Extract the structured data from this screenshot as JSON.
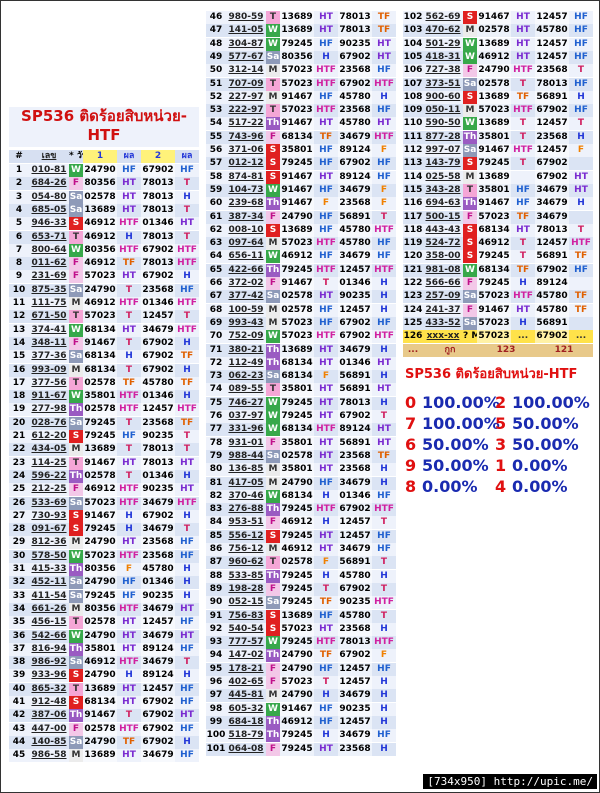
{
  "title": "SP536 ติดร้อยสิบหน่วย-HTF",
  "header": [
    "#",
    "เลข",
    "* วัน",
    "1",
    "ผล",
    "2",
    "ผล"
  ],
  "tables": [
    {
      "rows": [
        [
          1,
          "010-81",
          "W",
          "24790",
          "HF",
          "67902",
          "HF"
        ],
        [
          2,
          "684-26",
          "F",
          "80356",
          "HT",
          "78013",
          "T"
        ],
        [
          3,
          "054-80",
          "Sa",
          "02578",
          "HT",
          "78013",
          "H"
        ],
        [
          4,
          "685-05",
          "Sa",
          "13689",
          "HT",
          "78013",
          "T"
        ],
        [
          5,
          "946-33",
          "S",
          "46912",
          "HTF",
          "01346",
          "HT"
        ],
        [
          6,
          "653-71",
          "T",
          "46912",
          "H",
          "78013",
          "T"
        ],
        [
          7,
          "800-64",
          "W",
          "80356",
          "HTF",
          "67902",
          "HTF"
        ],
        [
          8,
          "011-62",
          "F",
          "46912",
          "TF",
          "78013",
          "HTF"
        ],
        [
          9,
          "231-69",
          "F",
          "57023",
          "HT",
          "67902",
          "H"
        ],
        [
          10,
          "875-35",
          "Sa",
          "24790",
          "T",
          "23568",
          "HF"
        ],
        [
          11,
          "111-75",
          "M",
          "46912",
          "HTF",
          "01346",
          "HTF"
        ],
        [
          12,
          "671-50",
          "T",
          "57023",
          "T",
          "12457",
          "T"
        ],
        [
          13,
          "374-41",
          "W",
          "68134",
          "HT",
          "34679",
          "HTF"
        ],
        [
          14,
          "348-11",
          "F",
          "91467",
          "T",
          "67902",
          "H"
        ],
        [
          15,
          "377-36",
          "Sa",
          "68134",
          "H",
          "67902",
          "TF"
        ],
        [
          16,
          "993-09",
          "M",
          "68134",
          "T",
          "67902",
          "H"
        ],
        [
          17,
          "377-56",
          "T",
          "02578",
          "TF",
          "45780",
          "TF"
        ],
        [
          18,
          "911-67",
          "W",
          "35801",
          "HTF",
          "01346",
          "H"
        ],
        [
          19,
          "277-98",
          "Th",
          "02578",
          "HTF",
          "12457",
          "HTF"
        ],
        [
          20,
          "028-76",
          "Sa",
          "79245",
          "T",
          "23568",
          "TF"
        ],
        [
          21,
          "612-20",
          "S",
          "79245",
          "HF",
          "90235",
          "T"
        ],
        [
          22,
          "434-05",
          "M",
          "13689",
          "T",
          "78013",
          "T"
        ],
        [
          23,
          "114-25",
          "T",
          "91467",
          "HT",
          "78013",
          "HT"
        ],
        [
          24,
          "596-22",
          "Th",
          "02578",
          "T",
          "01346",
          "H"
        ],
        [
          25,
          "212-25",
          "F",
          "46912",
          "HTF",
          "90235",
          "HT"
        ],
        [
          26,
          "533-69",
          "Sa",
          "57023",
          "HTF",
          "34679",
          "HTF"
        ],
        [
          27,
          "730-93",
          "S",
          "91467",
          "H",
          "67902",
          "H"
        ],
        [
          28,
          "091-67",
          "S",
          "79245",
          "H",
          "34679",
          "T"
        ],
        [
          29,
          "812-36",
          "M",
          "24790",
          "HT",
          "23568",
          "HF"
        ],
        [
          30,
          "578-50",
          "W",
          "57023",
          "HTF",
          "23568",
          "HF"
        ],
        [
          31,
          "415-33",
          "Th",
          "80356",
          "F",
          "45780",
          "H"
        ],
        [
          32,
          "452-11",
          "Sa",
          "24790",
          "HF",
          "01346",
          "H"
        ],
        [
          33,
          "411-54",
          "Sa",
          "79245",
          "HF",
          "90235",
          "H"
        ],
        [
          34,
          "661-26",
          "M",
          "80356",
          "HTF",
          "34679",
          "HT"
        ],
        [
          35,
          "456-15",
          "T",
          "02578",
          "HT",
          "12457",
          "HF"
        ],
        [
          36,
          "542-66",
          "W",
          "24790",
          "HT",
          "34679",
          "HT"
        ],
        [
          37,
          "816-94",
          "Th",
          "35801",
          "HT",
          "89124",
          "HF"
        ],
        [
          38,
          "986-92",
          "Sa",
          "46912",
          "HTF",
          "34679",
          "T"
        ],
        [
          39,
          "933-96",
          "S",
          "24790",
          "H",
          "89124",
          "H"
        ],
        [
          40,
          "865-32",
          "T",
          "13689",
          "HT",
          "12457",
          "HF"
        ],
        [
          41,
          "912-48",
          "S",
          "68134",
          "HT",
          "67902",
          "HF"
        ],
        [
          42,
          "387-06",
          "Th",
          "91467",
          "T",
          "67902",
          "HT"
        ],
        [
          43,
          "447-00",
          "F",
          "02578",
          "HTF",
          "67902",
          "HF"
        ],
        [
          44,
          "140-85",
          "Sa",
          "24790",
          "TF",
          "67902",
          "H"
        ],
        [
          45,
          "986-58",
          "M",
          "13689",
          "HT",
          "34679",
          "HF"
        ]
      ]
    },
    {
      "rows": [
        [
          46,
          "980-59",
          "T",
          "13689",
          "HT",
          "78013",
          "TF"
        ],
        [
          47,
          "141-05",
          "W",
          "13689",
          "HT",
          "78013",
          "TF"
        ],
        [
          48,
          "304-87",
          "W",
          "79245",
          "HF",
          "90235",
          "HT"
        ],
        [
          49,
          "577-67",
          "Sa",
          "80356",
          "H",
          "67902",
          "HT"
        ],
        [
          50,
          "312-14",
          "M",
          "57023",
          "HTF",
          "23568",
          "HF"
        ],
        [
          51,
          "707-09",
          "T",
          "57023",
          "HTF",
          "67902",
          "HTF"
        ],
        [
          52,
          "227-97",
          "M",
          "91467",
          "HF",
          "45780",
          "H"
        ],
        [
          53,
          "222-97",
          "T",
          "57023",
          "HTF",
          "23568",
          "HF"
        ],
        [
          54,
          "517-22",
          "Th",
          "91467",
          "HT",
          "45780",
          "HT"
        ],
        [
          55,
          "743-96",
          "F",
          "68134",
          "TF",
          "34679",
          "HTF"
        ],
        [
          56,
          "371-06",
          "S",
          "35801",
          "HF",
          "89124",
          "F"
        ],
        [
          57,
          "012-12",
          "S",
          "79245",
          "HF",
          "67902",
          "HF"
        ],
        [
          58,
          "874-81",
          "S",
          "91467",
          "HT",
          "89124",
          "HF"
        ],
        [
          59,
          "104-73",
          "W",
          "91467",
          "HF",
          "34679",
          "F"
        ],
        [
          60,
          "239-68",
          "Th",
          "91467",
          "F",
          "23568",
          "F"
        ],
        [
          61,
          "387-34",
          "F",
          "24790",
          "HF",
          "56891",
          "T"
        ],
        [
          62,
          "008-10",
          "S",
          "13689",
          "HF",
          "45780",
          "HTF"
        ],
        [
          63,
          "097-64",
          "M",
          "57023",
          "HTF",
          "45780",
          "HF"
        ],
        [
          64,
          "656-11",
          "W",
          "46912",
          "HF",
          "34679",
          "HF"
        ],
        [
          65,
          "422-66",
          "Th",
          "79245",
          "HTF",
          "12457",
          "HTF"
        ],
        [
          66,
          "372-02",
          "F",
          "91467",
          "T",
          "01346",
          "H"
        ],
        [
          67,
          "377-42",
          "Sa",
          "02578",
          "HT",
          "90235",
          "H"
        ],
        [
          68,
          "100-59",
          "M",
          "02578",
          "HF",
          "12457",
          "H"
        ],
        [
          69,
          "993-43",
          "M",
          "57023",
          "HF",
          "67902",
          "HF"
        ],
        [
          70,
          "752-09",
          "W",
          "57023",
          "HTF",
          "67902",
          "HTF"
        ],
        [
          71,
          "380-21",
          "Th",
          "13689",
          "HT",
          "34679",
          "H"
        ],
        [
          72,
          "112-49",
          "Th",
          "68134",
          "HT",
          "01346",
          "HT"
        ],
        [
          73,
          "062-23",
          "Sa",
          "68134",
          "F",
          "56891",
          "H"
        ],
        [
          74,
          "089-55",
          "T",
          "35801",
          "HT",
          "56891",
          "HT"
        ],
        [
          75,
          "746-27",
          "W",
          "79245",
          "HT",
          "78013",
          "H"
        ],
        [
          76,
          "037-97",
          "W",
          "79245",
          "HT",
          "67902",
          "T"
        ],
        [
          77,
          "331-96",
          "W",
          "68134",
          "HTF",
          "89124",
          "HT"
        ],
        [
          78,
          "931-01",
          "F",
          "35801",
          "HT",
          "56891",
          "HT"
        ],
        [
          79,
          "988-44",
          "Sa",
          "02578",
          "HT",
          "23568",
          "TF"
        ],
        [
          80,
          "136-85",
          "M",
          "35801",
          "HT",
          "23568",
          "H"
        ],
        [
          81,
          "417-05",
          "M",
          "24790",
          "HF",
          "34679",
          "H"
        ],
        [
          82,
          "370-46",
          "W",
          "68134",
          "H",
          "01346",
          "HF"
        ],
        [
          83,
          "276-88",
          "Th",
          "79245",
          "HTF",
          "67902",
          "HTF"
        ],
        [
          84,
          "953-51",
          "F",
          "46912",
          "H",
          "12457",
          "T"
        ],
        [
          85,
          "556-12",
          "S",
          "79245",
          "HT",
          "12457",
          "HF"
        ],
        [
          86,
          "756-12",
          "M",
          "46912",
          "HT",
          "34679",
          "HF"
        ],
        [
          87,
          "960-62",
          "T",
          "02578",
          "F",
          "56891",
          "T"
        ],
        [
          88,
          "533-85",
          "Th",
          "79245",
          "H",
          "45780",
          "H"
        ],
        [
          89,
          "198-28",
          "F",
          "79245",
          "T",
          "67902",
          "T"
        ],
        [
          90,
          "052-15",
          "Sa",
          "79245",
          "TF",
          "90235",
          "HTF"
        ],
        [
          91,
          "756-83",
          "S",
          "13689",
          "HF",
          "45780",
          "T"
        ],
        [
          92,
          "540-54",
          "S",
          "57023",
          "HT",
          "23568",
          "H"
        ],
        [
          93,
          "777-57",
          "W",
          "79245",
          "HTF",
          "78013",
          "HTF"
        ],
        [
          94,
          "147-02",
          "Th",
          "24790",
          "TF",
          "67902",
          "F"
        ],
        [
          95,
          "178-21",
          "F",
          "24790",
          "HF",
          "12457",
          "HF"
        ],
        [
          96,
          "402-65",
          "F",
          "57023",
          "T",
          "12457",
          "H"
        ],
        [
          97,
          "445-81",
          "M",
          "24790",
          "H",
          "34679",
          "H"
        ],
        [
          98,
          "605-32",
          "W",
          "91467",
          "HF",
          "90235",
          "H"
        ],
        [
          99,
          "684-18",
          "Th",
          "46912",
          "HF",
          "12457",
          "H"
        ],
        [
          100,
          "518-79",
          "Th",
          "79245",
          "H",
          "34679",
          "HF"
        ],
        [
          101,
          "064-08",
          "F",
          "79245",
          "HT",
          "23568",
          "H"
        ]
      ]
    },
    {
      "rows": [
        [
          102,
          "562-69",
          "S",
          "91467",
          "HT",
          "12457",
          "HF"
        ],
        [
          103,
          "470-62",
          "M",
          "02578",
          "HT",
          "45780",
          "HF"
        ],
        [
          104,
          "501-29",
          "W",
          "13689",
          "HT",
          "12457",
          "HF"
        ],
        [
          105,
          "418-31",
          "W",
          "46912",
          "HT",
          "12457",
          "HF"
        ],
        [
          106,
          "727-38",
          "F",
          "24790",
          "HTF",
          "23568",
          "T"
        ],
        [
          107,
          "373-51",
          "Sa",
          "02578",
          "T",
          "78013",
          "HF"
        ],
        [
          108,
          "900-60",
          "S",
          "13689",
          "TF",
          "56891",
          "H"
        ],
        [
          109,
          "050-11",
          "M",
          "57023",
          "HTF",
          "67902",
          "HF"
        ],
        [
          110,
          "590-50",
          "W",
          "13689",
          "T",
          "12457",
          "T"
        ],
        [
          111,
          "877-28",
          "Th",
          "35801",
          "T",
          "23568",
          "H"
        ],
        [
          112,
          "997-07",
          "Sa",
          "91467",
          "HTF",
          "12457",
          "F"
        ],
        [
          113,
          "143-79",
          "S",
          "79245",
          "T",
          "67902",
          null
        ],
        [
          114,
          "025-58",
          "M",
          "13689",
          null,
          "67902",
          "HT"
        ],
        [
          115,
          "343-28",
          "T",
          "35801",
          "HF",
          "34679",
          "HT"
        ],
        [
          116,
          "694-63",
          "Th",
          "91467",
          "HF",
          "34679",
          "H"
        ],
        [
          117,
          "500-15",
          "F",
          "57023",
          "TF",
          "34679",
          null
        ],
        [
          118,
          "443-43",
          "S",
          "68134",
          "HT",
          "78013",
          "T"
        ],
        [
          119,
          "524-72",
          "S",
          "46912",
          "T",
          "12457",
          "HTF"
        ],
        [
          120,
          "358-00",
          "S",
          "79245",
          "T",
          "56891",
          "TF"
        ],
        [
          121,
          "981-08",
          "W",
          "68134",
          "TF",
          "67902",
          "HF"
        ],
        [
          122,
          "566-66",
          "F",
          "79245",
          "H",
          "89124",
          null
        ],
        [
          123,
          "257-09",
          "Sa",
          "57023",
          "HTF",
          "45780",
          "TF"
        ],
        [
          124,
          "241-37",
          "F",
          "91467",
          "HT",
          "45780",
          "TF"
        ],
        [
          125,
          "433-52",
          "Sa",
          "57023",
          "H",
          "56891",
          null
        ],
        [
          126,
          "xxx-xx",
          "? M",
          "57023",
          "...",
          "67902",
          "..."
        ]
      ],
      "footer": [
        "...",
        "กูก",
        "123",
        "121"
      ]
    }
  ],
  "summary": {
    "title": "SP536 ติดร้อยสิบหน่วย-HTF",
    "lines": [
      [
        [
          "0",
          "100.00%"
        ],
        [
          "2",
          "100.00%"
        ]
      ],
      [
        [
          "7",
          "100.00%"
        ],
        [
          "5",
          "50.00%"
        ]
      ],
      [
        [
          "6",
          "50.00%"
        ],
        [
          "3",
          "50.00%"
        ]
      ],
      [
        [
          "9",
          "50.00%"
        ],
        [
          "1",
          "0.00%"
        ]
      ],
      [
        [
          "8",
          "0.00%"
        ],
        [
          "4",
          "0.00%"
        ]
      ]
    ]
  },
  "watermark": "[734x950] http://upic.me/"
}
